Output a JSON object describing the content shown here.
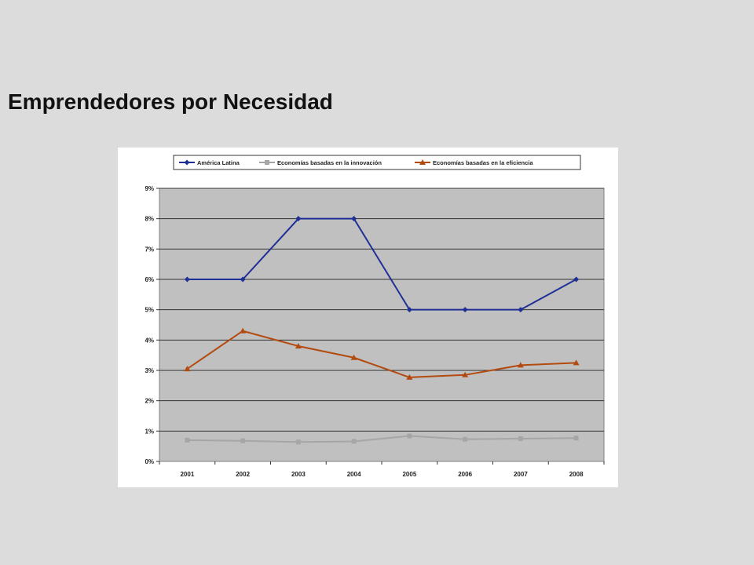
{
  "slide": {
    "title": "Emprendedores por Necesidad"
  },
  "colors": {
    "background": "#dcdcdc",
    "plot_area": "#c0c0c0",
    "series": [
      "#1f2f96",
      "#a6a6a6",
      "#b34a0f"
    ]
  },
  "chart_data": {
    "type": "line",
    "title": "",
    "xlabel": "",
    "ylabel": "",
    "x": [
      "2001",
      "2002",
      "2003",
      "2004",
      "2005",
      "2006",
      "2007",
      "2008"
    ],
    "ylim": [
      0,
      9
    ],
    "y_ticks": [
      "0%",
      "1%",
      "2%",
      "3%",
      "4%",
      "5%",
      "6%",
      "7%",
      "8%",
      "9%"
    ],
    "y_unit": "%",
    "grid": true,
    "legend_position": "top",
    "series": [
      {
        "name": "América Latina",
        "marker": "diamond",
        "color": "#1f2f96",
        "values": [
          6,
          6,
          8,
          8,
          5,
          5,
          5,
          6
        ]
      },
      {
        "name": "Economías basadas en la innovación",
        "marker": "square",
        "color": "#a6a6a6",
        "values": [
          0.7,
          0.68,
          0.64,
          0.66,
          0.84,
          0.73,
          0.75,
          0.77
        ]
      },
      {
        "name": "Economías basadas en la eficiencia",
        "marker": "triangle",
        "color": "#b34a0f",
        "values": [
          3.05,
          4.3,
          3.8,
          3.42,
          2.77,
          2.85,
          3.17,
          3.25
        ]
      }
    ]
  }
}
